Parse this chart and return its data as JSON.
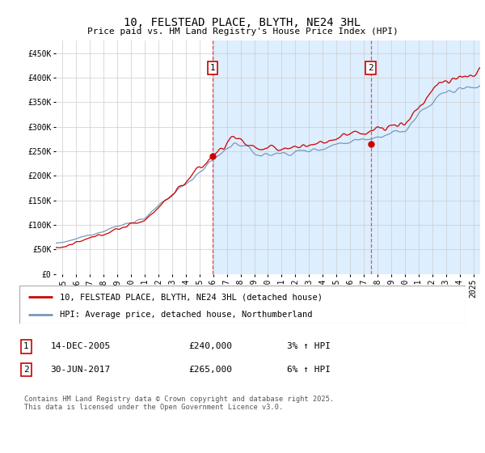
{
  "title": "10, FELSTEAD PLACE, BLYTH, NE24 3HL",
  "subtitle": "Price paid vs. HM Land Registry's House Price Index (HPI)",
  "ylabel_ticks": [
    "£0",
    "£50K",
    "£100K",
    "£150K",
    "£200K",
    "£250K",
    "£300K",
    "£350K",
    "£400K",
    "£450K"
  ],
  "ytick_vals": [
    0,
    50000,
    100000,
    150000,
    200000,
    250000,
    300000,
    350000,
    400000,
    450000
  ],
  "ylim": [
    0,
    475000
  ],
  "xlim_start": 1994.5,
  "xlim_end": 2025.5,
  "x_tick_years": [
    1995,
    1996,
    1997,
    1998,
    1999,
    2000,
    2001,
    2002,
    2003,
    2004,
    2005,
    2006,
    2007,
    2008,
    2009,
    2010,
    2011,
    2012,
    2013,
    2014,
    2015,
    2016,
    2017,
    2018,
    2019,
    2020,
    2021,
    2022,
    2023,
    2024,
    2025
  ],
  "sale1_x": 2005.96,
  "sale1_y": 240000,
  "sale1_label": "1",
  "sale1_date": "14-DEC-2005",
  "sale1_price": "£240,000",
  "sale1_hpi": "3% ↑ HPI",
  "sale2_x": 2017.5,
  "sale2_y": 265000,
  "sale2_label": "2",
  "sale2_date": "30-JUN-2017",
  "sale2_price": "£265,000",
  "sale2_hpi": "6% ↑ HPI",
  "line1_color": "#cc0000",
  "line2_color": "#7799bb",
  "bg_color": "#ddeeff",
  "plot_bg": "#ffffff",
  "grid_color": "#cccccc",
  "legend1": "10, FELSTEAD PLACE, BLYTH, NE24 3HL (detached house)",
  "legend2": "HPI: Average price, detached house, Northumberland",
  "footnote": "Contains HM Land Registry data © Crown copyright and database right 2025.\nThis data is licensed under the Open Government Licence v3.0.",
  "title_fontsize": 10,
  "subtitle_fontsize": 8,
  "tick_fontsize": 7,
  "legend_fontsize": 7.5,
  "ann_fontsize": 8
}
